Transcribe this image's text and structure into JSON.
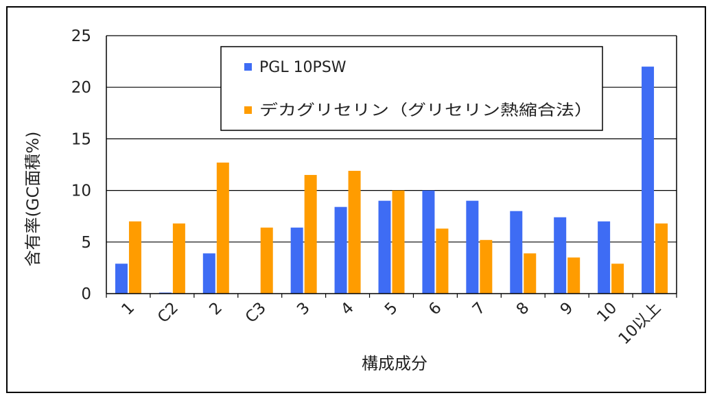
{
  "chart_data": {
    "type": "bar",
    "ylabel": "含有率(GC面積%)",
    "xlabel": "構成成分",
    "categories": [
      "1",
      "C2",
      "2",
      "C3",
      "3",
      "4",
      "5",
      "6",
      "7",
      "8",
      "9",
      "10",
      "10以上"
    ],
    "ylim": [
      0,
      25
    ],
    "yticks": [
      "0",
      "5",
      "10",
      "15",
      "20",
      "25"
    ],
    "grid": true,
    "legend_position": "top-center",
    "series": [
      {
        "name": "PGL 10PSW",
        "color": "#3e6cf4",
        "values": [
          2.9,
          0.1,
          3.9,
          0,
          6.4,
          8.4,
          9.0,
          10.0,
          9.0,
          8.0,
          7.4,
          7.0,
          22.0
        ]
      },
      {
        "name": "デカグリセリン（グリセリン熱縮合法）",
        "color": "#ff9c00",
        "values": [
          7.0,
          6.8,
          12.7,
          6.4,
          11.5,
          11.9,
          10.0,
          6.3,
          5.2,
          3.9,
          3.5,
          2.9,
          6.8
        ]
      }
    ]
  }
}
